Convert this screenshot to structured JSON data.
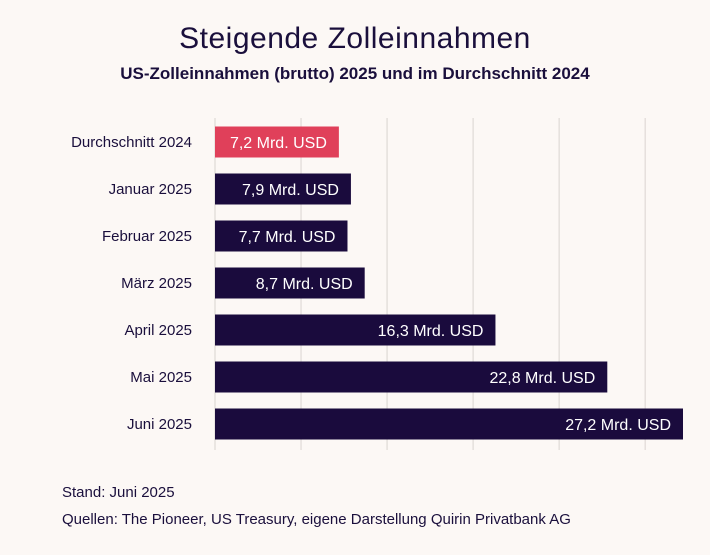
{
  "title": "Steigende Zolleinnahmen",
  "subtitle": "US-Zolleinnahmen (brutto) 2025 und im Durchschnitt 2024",
  "stand": "Stand: Juni 2025",
  "sources": "Quellen: The Pioneer, US Treasury, eigene Darstellung Quirin Privatbank AG",
  "colors": {
    "highlight": "#e0405a",
    "bar": "#1a0b3d",
    "grid": "#d9d4d0",
    "label_text": "#ffffff"
  },
  "chart_data": {
    "type": "bar",
    "orientation": "horizontal",
    "categories": [
      "Durchschnitt 2024",
      "Januar 2025",
      "Februar 2025",
      "März 2025",
      "April 2025",
      "Mai 2025",
      "Juni 2025"
    ],
    "values": [
      7.2,
      7.9,
      7.7,
      8.7,
      16.3,
      22.8,
      27.2
    ],
    "value_labels": [
      "7,2  Mrd. USD",
      "7,9  Mrd. USD",
      "7,7  Mrd. USD",
      "8,7  Mrd. USD",
      "16,3  Mrd. USD",
      "22,8  Mrd. USD",
      "27,2  Mrd. USD"
    ],
    "highlight_index": 0,
    "xlim": [
      0,
      27.2
    ],
    "grid": true
  }
}
